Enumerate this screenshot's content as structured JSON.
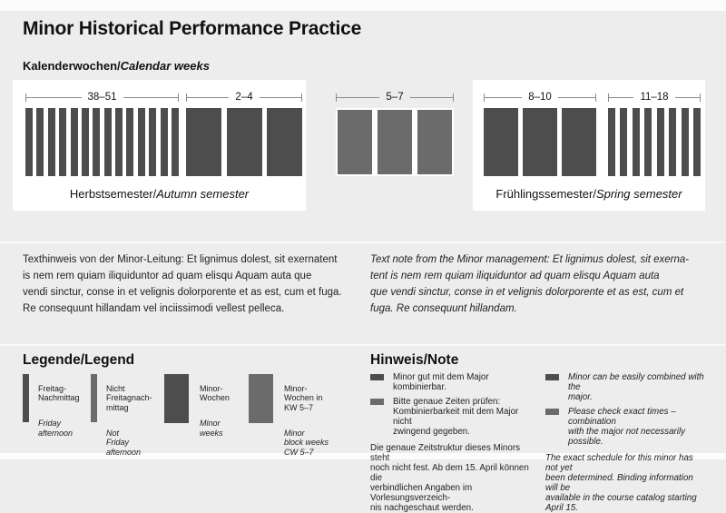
{
  "header": {
    "title": "Minor Historical Performance Practice",
    "subtitle_de": "Kalenderwochen",
    "separator": "/",
    "subtitle_en": "Calendar weeks"
  },
  "colors": {
    "dark_bar": "#4d4d4d",
    "light_bar": "#6b6b6b",
    "page_bg": "#ededed",
    "panel_bg": "#ffffff",
    "ruler": "#8a8a8a"
  },
  "calendar": {
    "groups": [
      {
        "range": "38–51",
        "weeks": 14,
        "bar": "narrow",
        "color": "dark_bar"
      },
      {
        "range": "2–4",
        "weeks": 3,
        "bar": "wide",
        "color": "dark_bar"
      },
      {
        "range": "5–7",
        "weeks": 3,
        "bar": "wide",
        "color": "light_bar"
      },
      {
        "range": "8–10",
        "weeks": 3,
        "bar": "wide",
        "color": "dark_bar"
      },
      {
        "range": "11–18",
        "weeks": 8,
        "bar": "narrow",
        "color": "dark_bar"
      }
    ],
    "autumn": {
      "label_de": "Herbstsemester",
      "separator": "/",
      "label_en": "Autumn semester"
    },
    "spring": {
      "label_de": "Frühlingssemester",
      "separator": "/",
      "label_en": "Spring semester"
    }
  },
  "notes": {
    "de": "Texthinweis von der Minor-Leitung: Et lignimus dolest, sit exernatent\nis nem rem quiam iliquiduntor ad quam elisqu Aquam auta que\nvendi sinctur, conse in et velignis dolorporente et as est, cum et fuga.\nRe consequunt hillandam vel inciissimodi vellest pelleca.",
    "en": "Text note from the Minor management: Et lignimus dolest, sit exerna-\ntent is nem rem quiam iliquiduntor ad quam elisqu Aquam auta\nque vendi sinctur, conse in et velignis dolorporente et as est, cum et\nfuga. Re consequunt hillandam."
  },
  "legend": {
    "title": "Legende/Legend",
    "items": [
      {
        "swatch": "narrow",
        "color": "dark_bar",
        "de": "Freitag-\nNachmittag",
        "en": "Friday\nafternoon"
      },
      {
        "swatch": "narrow",
        "color": "light_bar",
        "de": "Nicht\nFreitagnach-\nmittag",
        "en": "Not\nFriday\nafternoon"
      },
      {
        "swatch": "wide",
        "color": "dark_bar",
        "de": "Minor-\nWochen",
        "en": "Minor\nweeks"
      },
      {
        "swatch": "wide",
        "color": "light_bar",
        "de": "Minor-\nWochen in\nKW 5–7",
        "en": "Minor\nblock weeks\nCW 5–7"
      }
    ]
  },
  "note_box": {
    "title": "Hinweis/Note",
    "de_items": [
      {
        "color": "dark_bar",
        "text": "Minor gut mit dem Major kombinierbar."
      },
      {
        "color": "light_bar",
        "text": "Bitte genaue Zeiten prüfen:\nKombinierbarkeit mit dem Major nicht\nzwingend gegeben."
      }
    ],
    "de_paragraph": "Die genaue Zeitstruktur dieses Minors steht\nnoch nicht fest. Ab dem 15. April können die\nverbindlichen Angaben im Vorlesungsverzeich-\nnis nachgeschaut werden.",
    "en_items": [
      {
        "color": "dark_bar",
        "text": "Minor can be easily combined with the\nmajor."
      },
      {
        "color": "light_bar",
        "text": "Please check exact times – combination\nwith the major not necessarily possible."
      }
    ],
    "en_paragraph": "The exact schedule for this minor has not yet\nbeen determined. Binding information will be\navailable in the course catalog starting April 15."
  }
}
